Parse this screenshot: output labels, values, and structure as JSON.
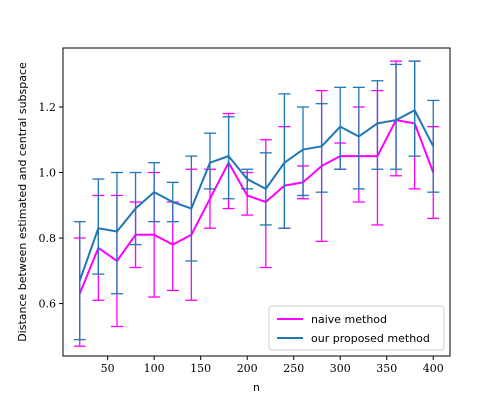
{
  "chart_data": {
    "type": "line",
    "xlabel": "n",
    "ylabel": "Distance between estimated and central subspace",
    "xlim": [
      2,
      418
    ],
    "ylim": [
      0.44,
      1.38
    ],
    "xticks": [
      50,
      100,
      150,
      200,
      250,
      300,
      350,
      400
    ],
    "yticks": [
      0.6,
      0.8,
      1.0,
      1.2
    ],
    "xtick_labels": [
      "50",
      "100",
      "150",
      "200",
      "250",
      "300",
      "350",
      "400"
    ],
    "ytick_labels": [
      "0.6",
      "0.8",
      "1.0",
      "1.2"
    ],
    "grid": false,
    "legend_position": "lower-right",
    "error_bars": true,
    "x": [
      20,
      40,
      60,
      80,
      100,
      120,
      140,
      160,
      180,
      200,
      220,
      240,
      260,
      280,
      300,
      320,
      340,
      360,
      380,
      400
    ],
    "series": [
      {
        "name": "naive method",
        "color": "#ff00ff",
        "values": [
          0.63,
          0.77,
          0.73,
          0.81,
          0.81,
          0.78,
          0.81,
          0.92,
          1.03,
          0.93,
          0.91,
          0.96,
          0.97,
          1.02,
          1.05,
          1.05,
          1.05,
          1.16,
          1.15,
          1.0
        ],
        "lower": [
          0.47,
          0.61,
          0.53,
          0.71,
          0.62,
          0.64,
          0.61,
          0.83,
          0.89,
          0.87,
          0.71,
          0.83,
          0.92,
          0.79,
          1.01,
          0.91,
          0.84,
          0.99,
          0.95,
          0.86
        ],
        "upper": [
          0.8,
          0.93,
          0.93,
          0.91,
          1.0,
          0.91,
          1.01,
          1.01,
          1.18,
          1.0,
          1.1,
          1.14,
          1.02,
          1.25,
          1.09,
          1.2,
          1.25,
          1.34,
          1.34,
          1.14
        ]
      },
      {
        "name": "our proposed method",
        "color": "#1f77b4",
        "values": [
          0.67,
          0.83,
          0.82,
          0.89,
          0.94,
          0.91,
          0.89,
          1.03,
          1.05,
          0.98,
          0.95,
          1.03,
          1.07,
          1.08,
          1.14,
          1.11,
          1.15,
          1.16,
          1.19,
          1.08
        ],
        "lower": [
          0.49,
          0.69,
          0.63,
          0.78,
          0.85,
          0.85,
          0.73,
          0.95,
          0.92,
          0.95,
          0.84,
          0.83,
          0.93,
          0.94,
          1.01,
          0.95,
          1.01,
          1.01,
          1.05,
          0.94
        ],
        "upper": [
          0.85,
          0.98,
          1.0,
          1.0,
          1.03,
          0.97,
          1.05,
          1.12,
          1.17,
          1.01,
          1.06,
          1.24,
          1.2,
          1.21,
          1.26,
          1.26,
          1.28,
          1.33,
          1.34,
          1.22
        ]
      }
    ]
  }
}
